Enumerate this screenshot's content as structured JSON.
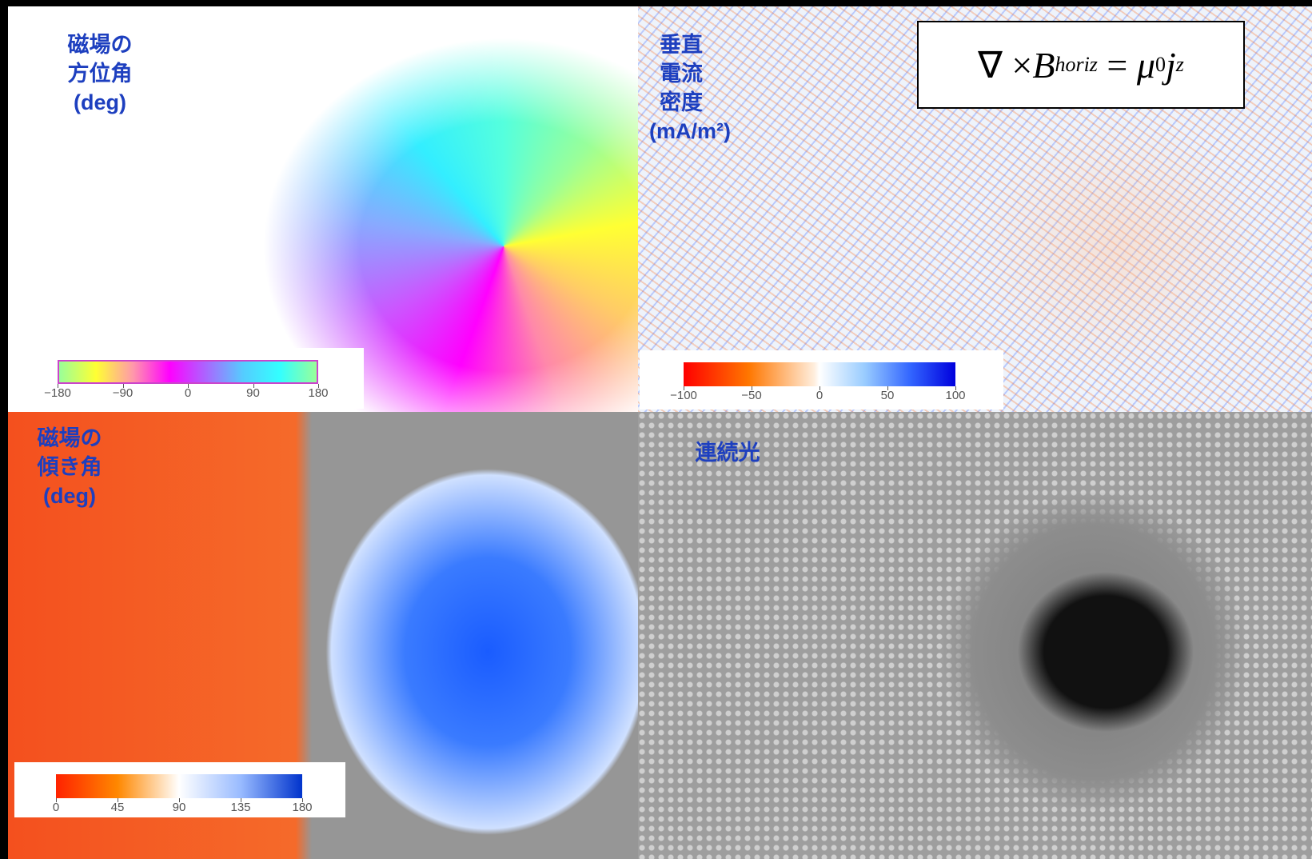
{
  "panels": [
    {
      "label": [
        "磁場の",
        "方位角",
        "(deg)"
      ],
      "colorbar": {
        "lim": [
          -180,
          180
        ],
        "ticks": [
          {
            "value": -180,
            "label": "−180"
          },
          {
            "value": -90,
            "label": "−90"
          },
          0,
          90,
          180
        ]
      }
    },
    {
      "label": [
        "垂直",
        "電流",
        "密度",
        "(mA/m²)"
      ],
      "colorbar": {
        "lim": [
          -100,
          100
        ],
        "ticks": [
          {
            "value": -100,
            "label": "−100"
          },
          {
            "value": -50,
            "label": "−50"
          },
          0,
          50,
          100
        ]
      }
    },
    {
      "label": [
        "磁場の",
        "傾き角",
        "(deg)"
      ],
      "colorbar": {
        "lim": [
          0,
          180
        ],
        "ticks": [
          0,
          45,
          90,
          135,
          180
        ]
      }
    },
    {
      "label": [
        "連続光"
      ]
    }
  ],
  "equation": {
    "nabla_cross": "∇ × ",
    "b": "B",
    "b_sub": "horiz",
    "eq": " = ",
    "mu": "μ",
    "mu_sub": "0",
    "j": "j",
    "j_sub": "z"
  }
}
